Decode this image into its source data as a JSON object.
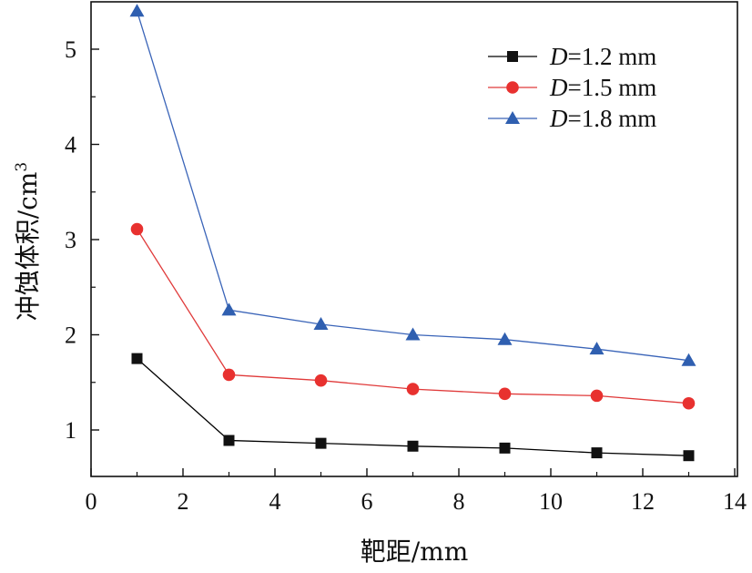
{
  "chart_data": {
    "type": "line",
    "xlabel": "靶距/mm",
    "ylabel_main": "冲蚀体积/cm",
    "ylabel_sup": "3",
    "xlim": [
      0,
      14
    ],
    "ylim": [
      0.45,
      5.5
    ],
    "xticks": [
      0,
      2,
      4,
      6,
      8,
      10,
      12,
      14
    ],
    "yticks": [
      1,
      2,
      3,
      4,
      5
    ],
    "grid": false,
    "legend_position": "top-right",
    "x": [
      1,
      3,
      5,
      7,
      9,
      11,
      13
    ],
    "series": [
      {
        "name": "D=1.2 mm",
        "name_var": "D",
        "name_rest": "=1.2 mm",
        "color": "#111111",
        "line_color": "#000000",
        "marker": "square",
        "values": [
          1.75,
          0.89,
          0.86,
          0.83,
          0.81,
          0.76,
          0.73
        ]
      },
      {
        "name": "D=1.5 mm",
        "name_var": "D",
        "name_rest": "=1.5 mm",
        "color": "#e8312f",
        "line_color": "#e03a3a",
        "marker": "circle",
        "values": [
          3.11,
          1.58,
          1.52,
          1.43,
          1.38,
          1.36,
          1.28
        ]
      },
      {
        "name": "D=1.8 mm",
        "name_var": "D",
        "name_rest": "=1.8 mm",
        "color": "#2f5fb0",
        "line_color": "#3a64b8",
        "marker": "triangle",
        "values": [
          5.4,
          2.26,
          2.11,
          2.0,
          1.95,
          1.85,
          1.73
        ]
      }
    ]
  }
}
